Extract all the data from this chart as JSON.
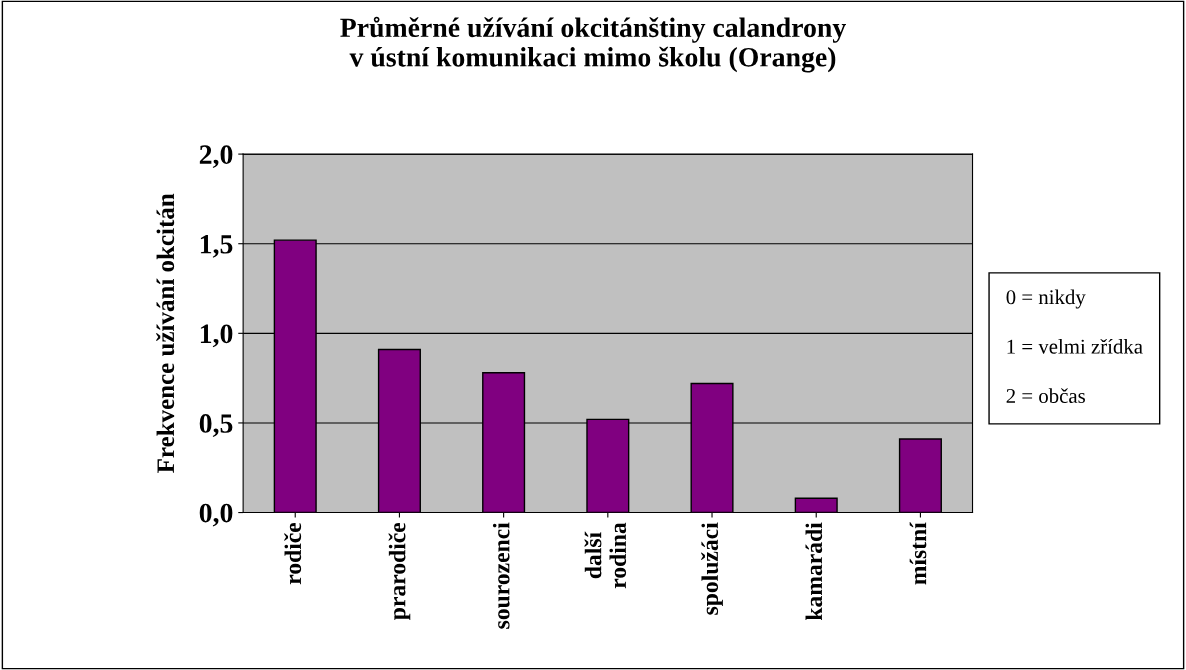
{
  "chart_data": {
    "type": "bar",
    "title": "Průměrné užívání okcitánštiny calandrony\nv ústní komunikaci mimo školu (Orange)",
    "ylabel": "Frekvence užívání okcitán",
    "categories": [
      "rodiče",
      "prarodiče",
      "sourozenci",
      "další\nrodina",
      "spolužáci",
      "kamarádi",
      "místní"
    ],
    "values": [
      1.52,
      0.91,
      0.78,
      0.52,
      0.72,
      0.08,
      0.41
    ],
    "color": "#800080",
    "ylim": [
      0,
      2
    ],
    "yticks": [
      {
        "value": 0,
        "label": "0,0"
      },
      {
        "value": 0.5,
        "label": "0,5"
      },
      {
        "value": 1,
        "label": "1,0"
      },
      {
        "value": 1.5,
        "label": "1,5"
      },
      {
        "value": 2,
        "label": "2,0"
      }
    ],
    "grid": "y",
    "annotations": [
      "0 = nikdy",
      "1 = velmi zřídka",
      "2 = občas"
    ]
  }
}
